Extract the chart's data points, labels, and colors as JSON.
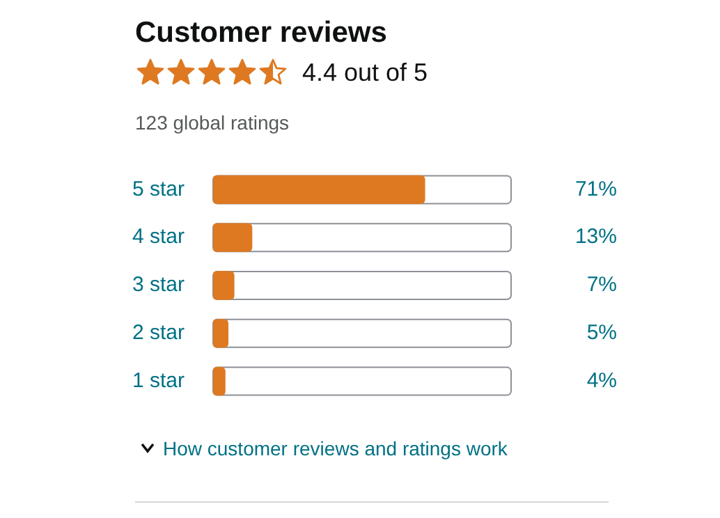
{
  "chart_data": {
    "type": "bar",
    "orientation": "horizontal",
    "title": "Customer reviews",
    "subtitle": "4.4 out of 5",
    "annotations": [
      "123 global ratings",
      "How customer reviews and ratings work"
    ],
    "categories": [
      "5 star",
      "4 star",
      "3 star",
      "2 star",
      "1 star"
    ],
    "values": [
      71,
      13,
      7,
      5,
      4
    ],
    "value_labels": [
      "71%",
      "13%",
      "7%",
      "5%",
      "4%"
    ],
    "color": "#de7921",
    "xlim": [
      0,
      100
    ],
    "grid": false,
    "legend": false,
    "tick_labels": "y"
  }
}
